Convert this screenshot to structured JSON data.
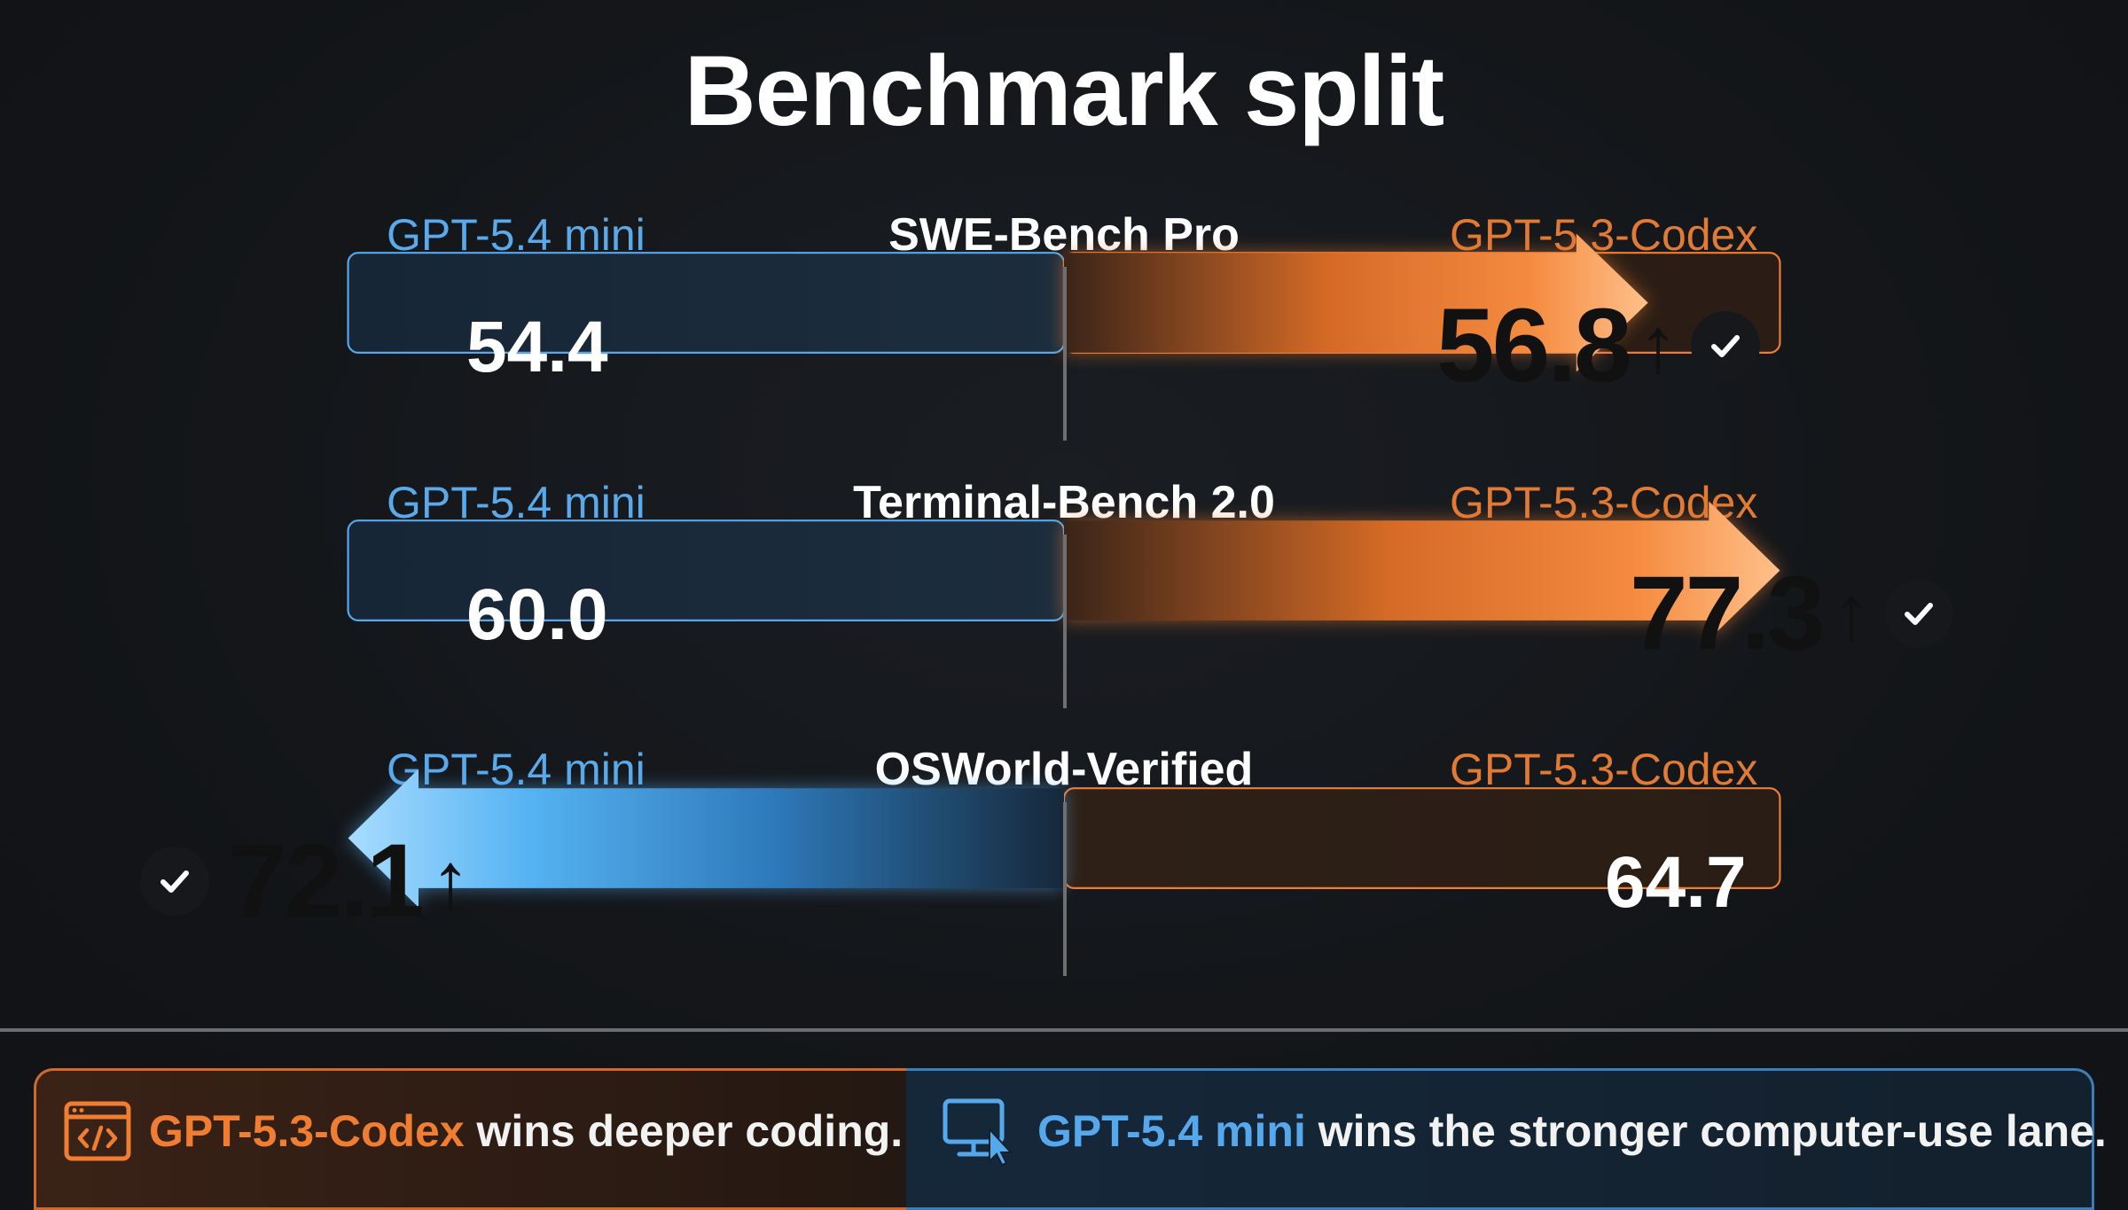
{
  "title": "Benchmark split",
  "colors": {
    "mini": "#56a8ec",
    "codex": "#ef7d32",
    "background": "#14161a"
  },
  "chart_data": {
    "type": "bar",
    "title": "Benchmark split",
    "categories": [
      "SWE-Bench Pro",
      "Terminal-Bench 2.0",
      "OSWorld-Verified"
    ],
    "series": [
      {
        "name": "GPT-5.4 mini",
        "values": [
          54.4,
          60.0,
          72.1
        ]
      },
      {
        "name": "GPT-5.3-Codex",
        "values": [
          56.8,
          77.3,
          64.7
        ]
      }
    ],
    "winner": [
      "GPT-5.3-Codex",
      "GPT-5.3-Codex",
      "GPT-5.4 mini"
    ]
  },
  "rows": [
    {
      "left_label": "GPT-5.4 mini",
      "bench": "SWE-Bench Pro",
      "right_label": "GPT-5.3-Codex",
      "left_value": "54.4",
      "right_value": "56.8",
      "winner": "right"
    },
    {
      "left_label": "GPT-5.4 mini",
      "bench": "Terminal-Bench 2.0",
      "right_label": "GPT-5.3-Codex",
      "left_value": "60.0",
      "right_value": "77.3",
      "winner": "right"
    },
    {
      "left_label": "GPT-5.4 mini",
      "bench": "OSWorld-Verified",
      "right_label": "GPT-5.3-Codex",
      "left_value": "72.1",
      "right_value": "64.7",
      "winner": "left"
    }
  ],
  "up_glyph": "↑",
  "footer": {
    "left": {
      "model": "GPT-5.3-Codex",
      "text": " wins deeper coding.",
      "icon": "code-window-icon"
    },
    "right": {
      "model": "GPT-5.4 mini",
      "text": " wins the stronger computer-use lane.",
      "icon": "monitor-cursor-icon"
    }
  }
}
